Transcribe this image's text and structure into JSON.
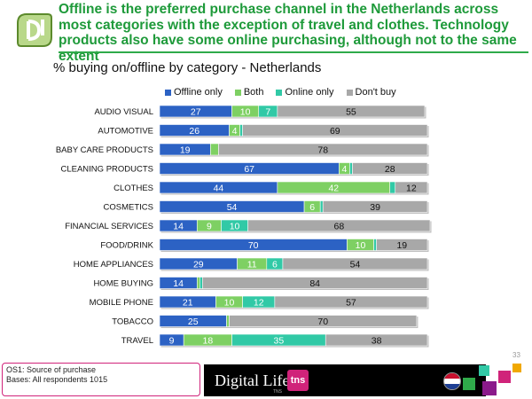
{
  "header": {
    "headline": "Offline is the preferred purchase channel in the Netherlands across most categories with the exception of travel and clothes.  Technology products also have some online purchasing, although not to the same extent"
  },
  "footer": {
    "source_line1": "OS1: Source of purchase",
    "source_line2": "Bases: All respondents 1015",
    "brand": "Digital Life",
    "brand_sub": "TNS",
    "badge": "tns",
    "page_number": "33"
  },
  "colors": {
    "offline": "#2c62c4",
    "both": "#7ed063",
    "online": "#31c9a6",
    "dontbuy": "#a8a8a8",
    "headline": "#1e9a3a",
    "brand_pink": "#d0237a"
  },
  "icons": [
    "digital-life-logo-icon",
    "netherlands-flag-icon"
  ],
  "chart_data": {
    "type": "bar",
    "orientation": "horizontal",
    "stacked": true,
    "title": "% buying on/offline by category - Netherlands",
    "legend_position": "top",
    "xlim": [
      0,
      100
    ],
    "categories": [
      "AUDIO VISUAL",
      "AUTOMOTIVE",
      "BABY CARE PRODUCTS",
      "CLEANING PRODUCTS",
      "CLOTHES",
      "COSMETICS",
      "FINANCIAL SERVICES",
      "FOOD/DRINK",
      "HOME APPLIANCES",
      "HOME BUYING",
      "MOBILE PHONE",
      "TOBACCO",
      "TRAVEL"
    ],
    "series": [
      {
        "name": "Offline only",
        "color": "#2c62c4",
        "values": [
          27,
          26,
          19,
          67,
          44,
          54,
          14,
          70,
          29,
          14,
          21,
          25,
          9
        ]
      },
      {
        "name": "Both",
        "color": "#7ed063",
        "values": [
          10,
          4,
          3,
          4,
          42,
          6,
          9,
          10,
          11,
          1,
          10,
          1,
          18
        ]
      },
      {
        "name": "Online only",
        "color": "#31c9a6",
        "values": [
          7,
          1,
          0,
          1,
          2,
          1,
          10,
          1,
          6,
          1,
          12,
          0,
          35
        ]
      },
      {
        "name": "Don't buy",
        "color": "#a8a8a8",
        "values": [
          55,
          69,
          78,
          28,
          12,
          39,
          68,
          19,
          54,
          84,
          57,
          70,
          38
        ]
      }
    ]
  }
}
